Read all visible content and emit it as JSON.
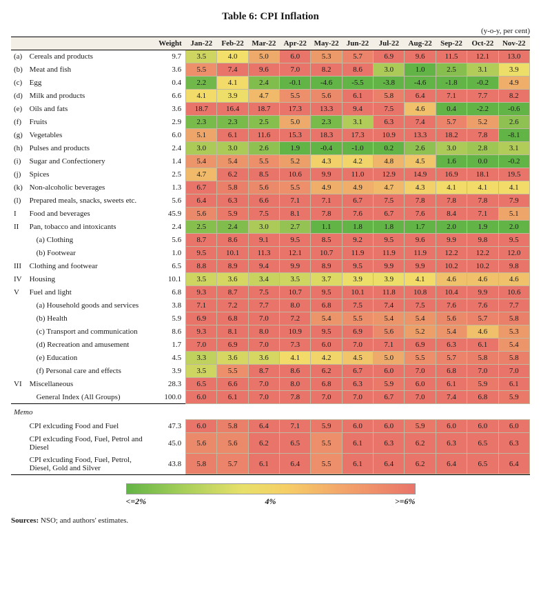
{
  "title": "Table 6: CPI Inflation",
  "unit_note": "(y-o-y, per cent)",
  "headers": {
    "blank": "",
    "weight": "Weight",
    "months": [
      "Jan-22",
      "Feb-22",
      "Mar-22",
      "Apr-22",
      "May-22",
      "Jun-22",
      "Jul-22",
      "Aug-22",
      "Sep-22",
      "Oct-22",
      "Nov-22"
    ]
  },
  "color_scale": {
    "low_hex": "#63b446",
    "mid_hex": "#f3e06a",
    "high_hex": "#e9746a",
    "low_value": 2.0,
    "mid_value": 4.0,
    "high_value": 6.0
  },
  "legend": {
    "low": "<=2%",
    "mid": "4%",
    "high": ">=6%"
  },
  "rows": [
    {
      "key": "(a)",
      "label": "Cereals and products",
      "weight": "9.7",
      "v": [
        3.5,
        4.0,
        5.0,
        6.0,
        5.3,
        5.7,
        6.9,
        9.6,
        11.5,
        12.1,
        13.0
      ]
    },
    {
      "key": "(b)",
      "label": "Meat and fish",
      "weight": "3.6",
      "v": [
        5.5,
        7.4,
        9.6,
        7.0,
        8.2,
        8.6,
        3.0,
        1.0,
        2.5,
        3.1,
        3.9
      ]
    },
    {
      "key": "(c)",
      "label": "Egg",
      "weight": "0.4",
      "v": [
        2.2,
        4.1,
        2.4,
        -0.1,
        -4.6,
        -5.5,
        -3.8,
        -4.6,
        -1.8,
        -0.2,
        4.9
      ]
    },
    {
      "key": "(d)",
      "label": "Milk and products",
      "weight": "6.6",
      "v": [
        4.1,
        3.9,
        4.7,
        5.5,
        5.6,
        6.1,
        5.8,
        6.4,
        7.1,
        7.7,
        8.2
      ]
    },
    {
      "key": "(e)",
      "label": "Oils and fats",
      "weight": "3.6",
      "v": [
        18.7,
        16.4,
        18.7,
        17.3,
        13.3,
        9.4,
        7.5,
        4.6,
        0.4,
        -2.2,
        -0.6
      ]
    },
    {
      "key": "(f)",
      "label": "Fruits",
      "weight": "2.9",
      "v": [
        2.3,
        2.3,
        2.5,
        5.0,
        2.3,
        3.1,
        6.3,
        7.4,
        5.7,
        5.2,
        2.6
      ]
    },
    {
      "key": "(g)",
      "label": "Vegetables",
      "weight": "6.0",
      "v": [
        5.1,
        6.1,
        11.6,
        15.3,
        18.3,
        17.3,
        10.9,
        13.3,
        18.2,
        7.8,
        -8.1
      ]
    },
    {
      "key": "(h)",
      "label": "Pulses and products",
      "weight": "2.4",
      "v": [
        3.0,
        3.0,
        2.6,
        1.9,
        -0.4,
        -1.0,
        0.2,
        2.6,
        3.0,
        2.8,
        3.1
      ]
    },
    {
      "key": "(i)",
      "label": "Sugar and Confectionery",
      "weight": "1.4",
      "v": [
        5.4,
        5.4,
        5.5,
        5.2,
        4.3,
        4.2,
        4.8,
        4.5,
        1.6,
        0.0,
        -0.2
      ]
    },
    {
      "key": "(j)",
      "label": "Spices",
      "weight": "2.5",
      "v": [
        4.7,
        6.2,
        8.5,
        10.6,
        9.9,
        11.0,
        12.9,
        14.9,
        16.9,
        18.1,
        19.5
      ]
    },
    {
      "key": "(k)",
      "label": "Non-alcoholic beverages",
      "weight": "1.3",
      "v": [
        6.7,
        5.8,
        5.6,
        5.5,
        4.9,
        4.9,
        4.7,
        4.3,
        4.1,
        4.1,
        4.1
      ]
    },
    {
      "key": "(l)",
      "label": "Prepared meals, snacks, sweets etc.",
      "weight": "5.6",
      "v": [
        6.4,
        6.3,
        6.6,
        7.1,
        7.1,
        6.7,
        7.5,
        7.8,
        7.8,
        7.8,
        7.9
      ]
    },
    {
      "key": "I",
      "label": "Food and beverages",
      "weight": "45.9",
      "v": [
        5.6,
        5.9,
        7.5,
        8.1,
        7.8,
        7.6,
        6.7,
        7.6,
        8.4,
        7.1,
        5.1
      ]
    },
    {
      "key": "II",
      "label": "Pan, tobacco and intoxicants",
      "weight": "2.4",
      "v": [
        2.5,
        2.4,
        3.0,
        2.7,
        1.1,
        1.8,
        1.8,
        1.7,
        2.0,
        1.9,
        2.0
      ]
    },
    {
      "key": "",
      "label": "(a) Clothing",
      "weight": "5.6",
      "indent": true,
      "v": [
        8.7,
        8.6,
        9.1,
        9.5,
        8.5,
        9.2,
        9.5,
        9.6,
        9.9,
        9.8,
        9.5
      ]
    },
    {
      "key": "",
      "label": "(b) Footwear",
      "weight": "1.0",
      "indent": true,
      "v": [
        9.5,
        10.1,
        11.3,
        12.1,
        10.7,
        11.9,
        11.9,
        11.9,
        12.2,
        12.2,
        12.0
      ]
    },
    {
      "key": "III",
      "label": "Clothing and footwear",
      "weight": "6.5",
      "v": [
        8.8,
        8.9,
        9.4,
        9.9,
        8.9,
        9.5,
        9.9,
        9.9,
        10.2,
        10.2,
        9.8
      ]
    },
    {
      "key": "IV",
      "label": "Housing",
      "weight": "10.1",
      "v": [
        3.5,
        3.6,
        3.4,
        3.5,
        3.7,
        3.9,
        3.9,
        4.1,
        4.6,
        4.6,
        4.6
      ]
    },
    {
      "key": "V",
      "label": "Fuel and light",
      "weight": "6.8",
      "v": [
        9.3,
        8.7,
        7.5,
        10.7,
        9.5,
        10.1,
        11.8,
        10.8,
        10.4,
        9.9,
        10.6
      ]
    },
    {
      "key": "",
      "label": "(a) Household goods and services",
      "weight": "3.8",
      "indent": true,
      "v": [
        7.1,
        7.2,
        7.7,
        8.0,
        6.8,
        7.5,
        7.4,
        7.5,
        7.6,
        7.6,
        7.7
      ]
    },
    {
      "key": "",
      "label": "(b) Health",
      "weight": "5.9",
      "indent": true,
      "v": [
        6.9,
        6.8,
        7.0,
        7.2,
        5.4,
        5.5,
        5.4,
        5.4,
        5.6,
        5.7,
        5.8
      ]
    },
    {
      "key": "",
      "label": "(c) Transport and communication",
      "weight": "8.6",
      "indent": true,
      "v": [
        9.3,
        8.1,
        8.0,
        10.9,
        9.5,
        6.9,
        5.6,
        5.2,
        5.4,
        4.6,
        5.3
      ]
    },
    {
      "key": "",
      "label": "(d) Recreation and amusement",
      "weight": "1.7",
      "indent": true,
      "v": [
        7.0,
        6.9,
        7.0,
        7.3,
        6.0,
        7.0,
        7.1,
        6.9,
        6.3,
        6.1,
        5.4
      ]
    },
    {
      "key": "",
      "label": "(e) Education",
      "weight": "4.5",
      "indent": true,
      "v": [
        3.3,
        3.6,
        3.6,
        4.1,
        4.2,
        4.5,
        5.0,
        5.5,
        5.7,
        5.8,
        5.8
      ]
    },
    {
      "key": "",
      "label": "(f) Personal care and effects",
      "weight": "3.9",
      "indent": true,
      "v": [
        3.5,
        5.5,
        8.7,
        8.6,
        6.2,
        6.7,
        6.0,
        7.0,
        6.8,
        7.0,
        7.0
      ]
    },
    {
      "key": "VI",
      "label": "Miscellaneous",
      "weight": "28.3",
      "v": [
        6.5,
        6.6,
        7.0,
        8.0,
        6.8,
        6.3,
        5.9,
        6.0,
        6.1,
        5.9,
        6.1
      ]
    },
    {
      "key": "",
      "label": "General Index (All Groups)",
      "weight": "100.0",
      "indent": true,
      "v": [
        6.0,
        6.1,
        7.0,
        7.8,
        7.0,
        7.0,
        6.7,
        7.0,
        7.4,
        6.8,
        5.9
      ]
    }
  ],
  "memo_label": "Memo",
  "memo_rows": [
    {
      "label": "CPI exlcuding Food and Fuel",
      "weight": "47.3",
      "v": [
        6.0,
        5.8,
        6.4,
        7.1,
        5.9,
        6.0,
        6.0,
        5.9,
        6.0,
        6.0,
        6.0
      ]
    },
    {
      "label": "CPI exlcuding Food, Fuel, Petrol and Diesel",
      "weight": "45.0",
      "v": [
        5.6,
        5.6,
        6.2,
        6.5,
        5.5,
        6.1,
        6.3,
        6.2,
        6.3,
        6.5,
        6.3
      ]
    },
    {
      "label": "CPI exlcuding Food, Fuel, Petrol, Diesel, Gold and Silver",
      "weight": "43.8",
      "v": [
        5.8,
        5.7,
        6.1,
        6.4,
        5.5,
        6.1,
        6.4,
        6.2,
        6.4,
        6.5,
        6.4
      ]
    }
  ],
  "sources_label": "Sources:",
  "sources_text": " NSO; and authors' estimates."
}
